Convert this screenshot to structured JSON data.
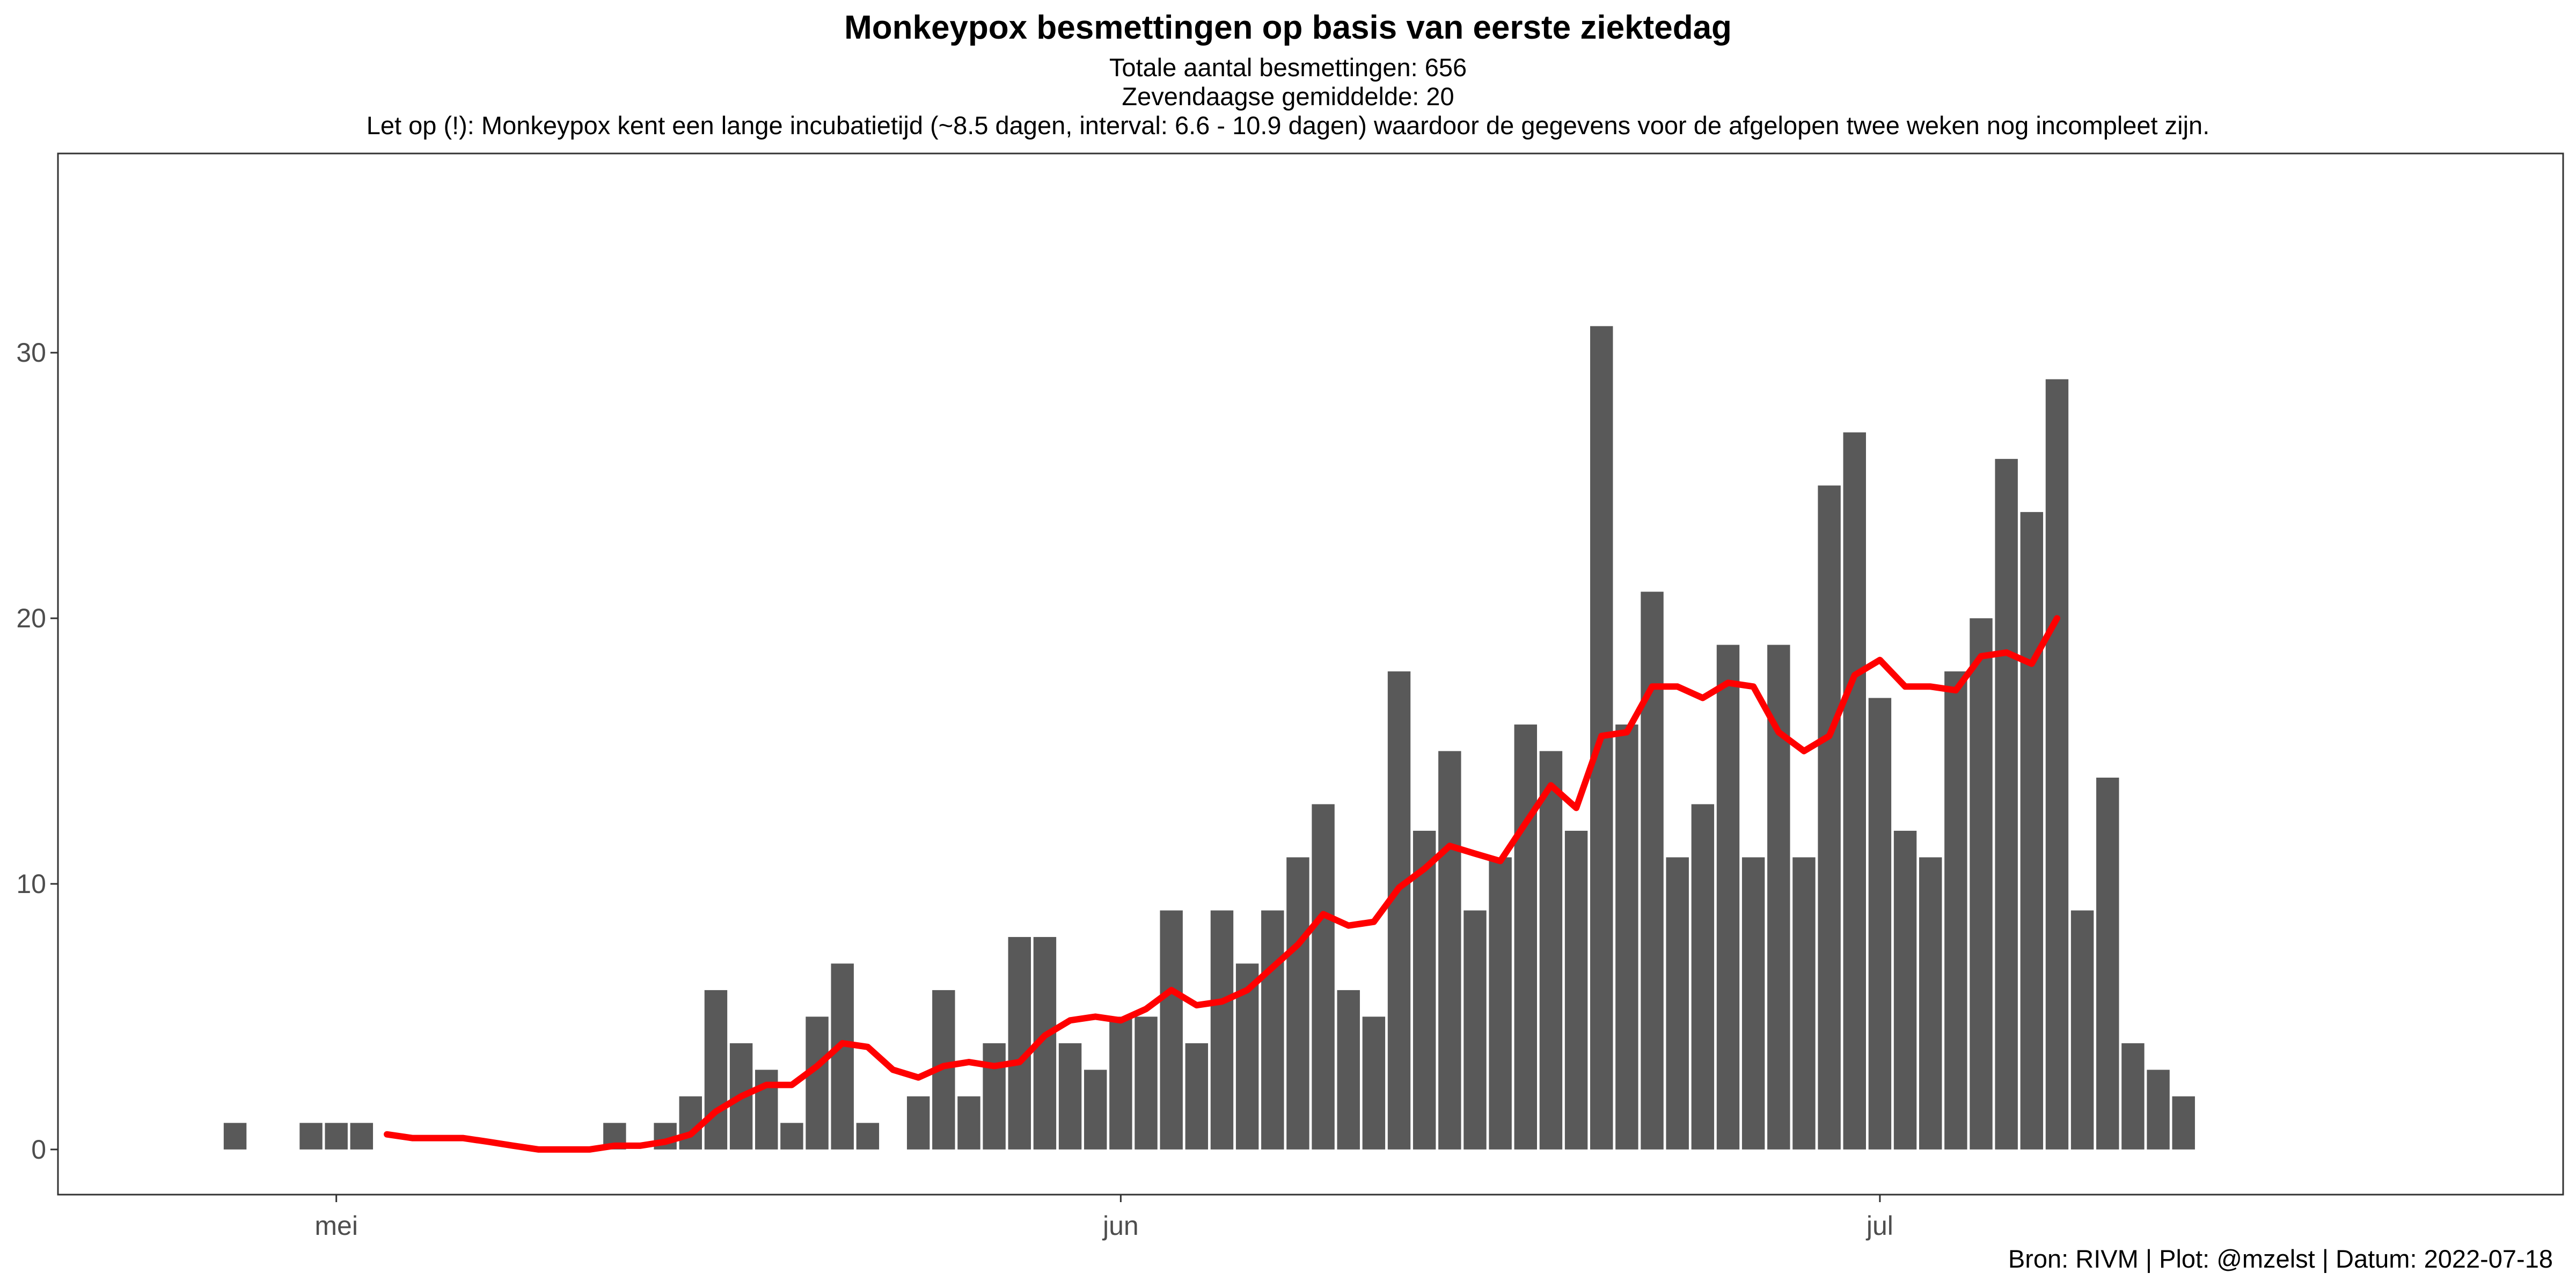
{
  "title": "Monkeypox besmettingen op basis van eerste ziektedag",
  "subtitle_lines": [
    "Totale aantal besmettingen: 656",
    "Zevendaagse gemiddelde: 20",
    "Let op (!): Monkeypox kent een lange incubatietijd (~8.5 dagen, interval: 6.6 - 10.9 dagen) waardoor de gegevens voor de afgelopen twee weken nog incompleet zijn."
  ],
  "caption": "Bron: RIVM | Plot: @mzelst | Datum: 2022-07-18",
  "chart_data": {
    "type": "bar",
    "x_type": "date",
    "xlim": [
      "2022-04-20",
      "2022-07-28"
    ],
    "ylim": [
      -1.7,
      37.5
    ],
    "grid": false,
    "x_ticks": [
      {
        "date": "2022-05-01",
        "label": "mei"
      },
      {
        "date": "2022-06-01",
        "label": "jun"
      },
      {
        "date": "2022-07-01",
        "label": "jul"
      }
    ],
    "y_ticks": [
      0,
      10,
      20,
      30
    ],
    "colors": {
      "bar": "#595959",
      "line": "#ff0000",
      "axis_text": "#4d4d4d",
      "panel_border": "#333333"
    },
    "series": [
      {
        "kind": "bar",
        "points": [
          [
            "2022-04-27",
            1
          ],
          [
            "2022-04-30",
            1
          ],
          [
            "2022-05-01",
            1
          ],
          [
            "2022-05-02",
            1
          ],
          [
            "2022-05-12",
            1
          ],
          [
            "2022-05-14",
            1
          ],
          [
            "2022-05-15",
            2
          ],
          [
            "2022-05-16",
            6
          ],
          [
            "2022-05-17",
            4
          ],
          [
            "2022-05-18",
            3
          ],
          [
            "2022-05-19",
            1
          ],
          [
            "2022-05-20",
            5
          ],
          [
            "2022-05-21",
            7
          ],
          [
            "2022-05-22",
            1
          ],
          [
            "2022-05-24",
            2
          ],
          [
            "2022-05-25",
            6
          ],
          [
            "2022-05-26",
            2
          ],
          [
            "2022-05-27",
            4
          ],
          [
            "2022-05-28",
            8
          ],
          [
            "2022-05-29",
            8
          ],
          [
            "2022-05-30",
            4
          ],
          [
            "2022-05-31",
            3
          ],
          [
            "2022-06-01",
            5
          ],
          [
            "2022-06-02",
            5
          ],
          [
            "2022-06-03",
            9
          ],
          [
            "2022-06-04",
            4
          ],
          [
            "2022-06-05",
            9
          ],
          [
            "2022-06-06",
            7
          ],
          [
            "2022-06-07",
            9
          ],
          [
            "2022-06-08",
            11
          ],
          [
            "2022-06-09",
            13
          ],
          [
            "2022-06-10",
            6
          ],
          [
            "2022-06-11",
            5
          ],
          [
            "2022-06-12",
            18
          ],
          [
            "2022-06-13",
            12
          ],
          [
            "2022-06-14",
            15
          ],
          [
            "2022-06-15",
            9
          ],
          [
            "2022-06-16",
            11
          ],
          [
            "2022-06-17",
            16
          ],
          [
            "2022-06-18",
            15
          ],
          [
            "2022-06-19",
            12
          ],
          [
            "2022-06-20",
            31
          ],
          [
            "2022-06-21",
            16
          ],
          [
            "2022-06-22",
            21
          ],
          [
            "2022-06-23",
            11
          ],
          [
            "2022-06-24",
            13
          ],
          [
            "2022-06-25",
            19
          ],
          [
            "2022-06-26",
            11
          ],
          [
            "2022-06-27",
            19
          ],
          [
            "2022-06-28",
            11
          ],
          [
            "2022-06-29",
            25
          ],
          [
            "2022-06-30",
            27
          ],
          [
            "2022-07-01",
            17
          ],
          [
            "2022-07-02",
            12
          ],
          [
            "2022-07-03",
            11
          ],
          [
            "2022-07-04",
            18
          ],
          [
            "2022-07-05",
            20
          ],
          [
            "2022-07-06",
            26
          ],
          [
            "2022-07-07",
            24
          ],
          [
            "2022-07-08",
            29
          ],
          [
            "2022-07-09",
            9
          ],
          [
            "2022-07-10",
            14
          ],
          [
            "2022-07-11",
            4
          ],
          [
            "2022-07-12",
            3
          ],
          [
            "2022-07-13",
            2
          ]
        ]
      },
      {
        "kind": "line",
        "points": [
          [
            "2022-05-03",
            0.57
          ],
          [
            "2022-05-04",
            0.43
          ],
          [
            "2022-05-05",
            0.43
          ],
          [
            "2022-05-06",
            0.43
          ],
          [
            "2022-05-07",
            0.29
          ],
          [
            "2022-05-08",
            0.14
          ],
          [
            "2022-05-09",
            0
          ],
          [
            "2022-05-10",
            0
          ],
          [
            "2022-05-11",
            0
          ],
          [
            "2022-05-12",
            0.14
          ],
          [
            "2022-05-13",
            0.14
          ],
          [
            "2022-05-14",
            0.29
          ],
          [
            "2022-05-15",
            0.57
          ],
          [
            "2022-05-16",
            1.43
          ],
          [
            "2022-05-17",
            2
          ],
          [
            "2022-05-18",
            2.43
          ],
          [
            "2022-05-19",
            2.43
          ],
          [
            "2022-05-20",
            3.14
          ],
          [
            "2022-05-21",
            4
          ],
          [
            "2022-05-22",
            3.86
          ],
          [
            "2022-05-23",
            3
          ],
          [
            "2022-05-24",
            2.71
          ],
          [
            "2022-05-25",
            3.14
          ],
          [
            "2022-05-26",
            3.29
          ],
          [
            "2022-05-27",
            3.14
          ],
          [
            "2022-05-28",
            3.29
          ],
          [
            "2022-05-29",
            4.29
          ],
          [
            "2022-05-30",
            4.86
          ],
          [
            "2022-05-31",
            5
          ],
          [
            "2022-06-01",
            4.86
          ],
          [
            "2022-06-02",
            5.29
          ],
          [
            "2022-06-03",
            6
          ],
          [
            "2022-06-04",
            5.43
          ],
          [
            "2022-06-05",
            5.57
          ],
          [
            "2022-06-06",
            6
          ],
          [
            "2022-06-07",
            6.86
          ],
          [
            "2022-06-08",
            7.71
          ],
          [
            "2022-06-09",
            8.86
          ],
          [
            "2022-06-10",
            8.43
          ],
          [
            "2022-06-11",
            8.57
          ],
          [
            "2022-06-12",
            9.86
          ],
          [
            "2022-06-13",
            10.57
          ],
          [
            "2022-06-14",
            11.43
          ],
          [
            "2022-06-15",
            11.14
          ],
          [
            "2022-06-16",
            10.86
          ],
          [
            "2022-06-17",
            12.29
          ],
          [
            "2022-06-18",
            13.71
          ],
          [
            "2022-06-19",
            12.86
          ],
          [
            "2022-06-20",
            15.57
          ],
          [
            "2022-06-21",
            15.71
          ],
          [
            "2022-06-22",
            17.43
          ],
          [
            "2022-06-23",
            17.43
          ],
          [
            "2022-06-24",
            17
          ],
          [
            "2022-06-25",
            17.57
          ],
          [
            "2022-06-26",
            17.43
          ],
          [
            "2022-06-27",
            15.71
          ],
          [
            "2022-06-28",
            15
          ],
          [
            "2022-06-29",
            15.57
          ],
          [
            "2022-06-30",
            17.86
          ],
          [
            "2022-07-01",
            18.43
          ],
          [
            "2022-07-02",
            17.43
          ],
          [
            "2022-07-03",
            17.43
          ],
          [
            "2022-07-04",
            17.29
          ],
          [
            "2022-07-05",
            18.57
          ],
          [
            "2022-07-06",
            18.71
          ],
          [
            "2022-07-07",
            18.29
          ],
          [
            "2022-07-08",
            20
          ]
        ]
      }
    ]
  }
}
